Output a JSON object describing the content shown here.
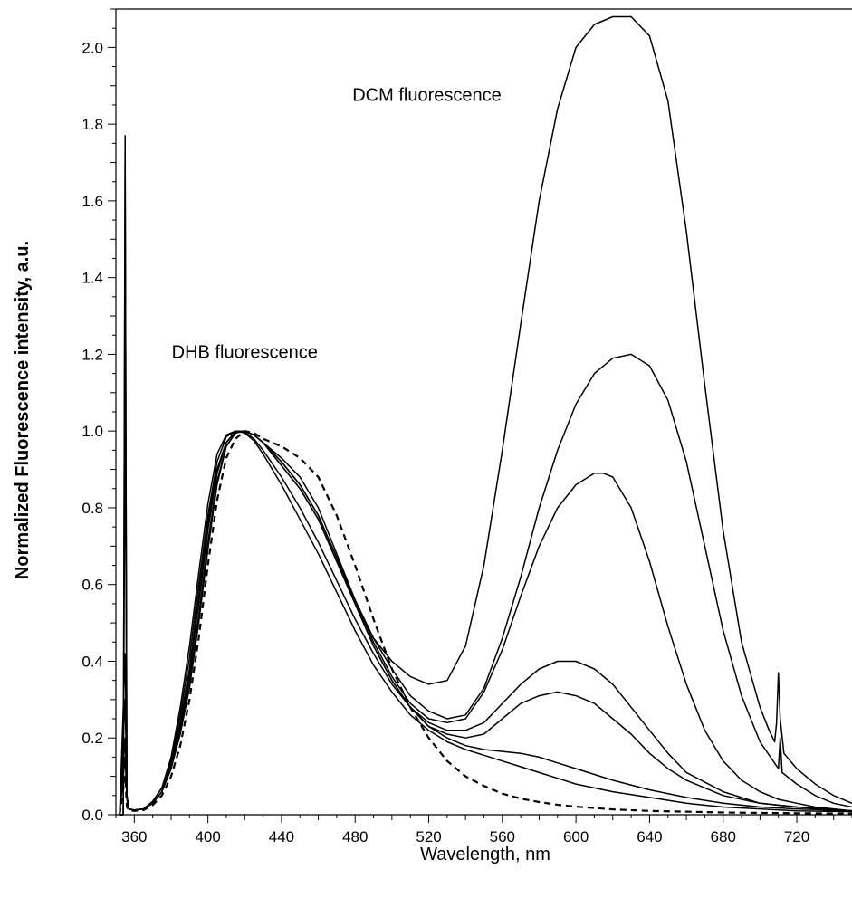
{
  "chart_data": {
    "type": "line",
    "xlabel": "Wavelength, nm",
    "ylabel": "Normalized Fluorescence intensity, a.u.",
    "xlim": [
      350,
      750
    ],
    "ylim": [
      0,
      2.1
    ],
    "x_ticks": [
      360,
      400,
      440,
      480,
      520,
      560,
      600,
      640,
      680,
      720
    ],
    "x_tick_labels": [
      "360",
      "400",
      "440",
      "480",
      "520",
      "560",
      "600",
      "640",
      "680",
      "720"
    ],
    "y_ticks": [
      0,
      0.2,
      0.4,
      0.6,
      0.8,
      1.0,
      1.2,
      1.4,
      1.6,
      1.8,
      2.0
    ],
    "y_tick_labels": [
      "0.0",
      "0.2",
      "0.4",
      "0.6",
      "0.8",
      "1.0",
      "1.2",
      "1.4",
      "1.6",
      "1.8",
      "2.0"
    ],
    "grid": false,
    "legend": "none",
    "annotations": [
      {
        "text": "DCM fluorescence",
        "x": 519,
        "y": 1.86
      },
      {
        "text": "DHB fluorescence",
        "x": 420,
        "y": 1.19
      }
    ],
    "series": [
      {
        "style": "solid",
        "color": "#000000",
        "x": [
          352,
          354,
          355,
          356,
          357,
          360,
          365,
          370,
          375,
          380,
          385,
          390,
          395,
          400,
          405,
          410,
          415,
          420,
          425,
          430,
          440,
          450,
          460,
          470,
          480,
          490,
          500,
          510,
          520,
          530,
          540,
          550,
          560,
          570,
          580,
          590,
          600,
          610,
          620,
          630,
          640,
          650,
          660,
          670,
          680,
          690,
          700,
          705,
          708,
          709,
          710,
          711,
          713,
          720,
          730,
          740,
          750
        ],
        "y": [
          0.0,
          0.0,
          1.77,
          0.05,
          0.015,
          0.012,
          0.015,
          0.03,
          0.06,
          0.12,
          0.21,
          0.33,
          0.5,
          0.69,
          0.86,
          0.96,
          0.995,
          1.0,
          0.99,
          0.97,
          0.91,
          0.85,
          0.77,
          0.66,
          0.55,
          0.46,
          0.4,
          0.36,
          0.34,
          0.35,
          0.44,
          0.65,
          0.95,
          1.28,
          1.6,
          1.84,
          2.0,
          2.06,
          2.08,
          2.08,
          2.03,
          1.86,
          1.52,
          1.12,
          0.74,
          0.45,
          0.28,
          0.22,
          0.19,
          0.24,
          0.37,
          0.25,
          0.16,
          0.12,
          0.08,
          0.05,
          0.03
        ]
      },
      {
        "style": "solid",
        "color": "#000000",
        "x": [
          352,
          354,
          355,
          356,
          357,
          360,
          365,
          370,
          375,
          380,
          385,
          390,
          395,
          400,
          405,
          410,
          415,
          420,
          425,
          430,
          440,
          450,
          460,
          470,
          480,
          490,
          500,
          510,
          520,
          530,
          540,
          550,
          560,
          570,
          580,
          590,
          600,
          610,
          620,
          630,
          640,
          650,
          660,
          670,
          680,
          690,
          700,
          710,
          711,
          712,
          720,
          730,
          740,
          750
        ],
        "y": [
          0.0,
          0.0,
          1.7,
          0.05,
          0.015,
          0.012,
          0.015,
          0.03,
          0.06,
          0.12,
          0.22,
          0.35,
          0.52,
          0.71,
          0.87,
          0.96,
          0.995,
          1.0,
          0.99,
          0.97,
          0.92,
          0.86,
          0.78,
          0.67,
          0.56,
          0.46,
          0.38,
          0.31,
          0.27,
          0.25,
          0.26,
          0.33,
          0.46,
          0.62,
          0.8,
          0.95,
          1.07,
          1.15,
          1.19,
          1.2,
          1.17,
          1.08,
          0.92,
          0.7,
          0.48,
          0.31,
          0.19,
          0.12,
          0.2,
          0.11,
          0.08,
          0.05,
          0.03,
          0.02
        ]
      },
      {
        "style": "solid",
        "color": "#000000",
        "x": [
          352,
          354,
          355,
          356,
          357,
          360,
          365,
          370,
          375,
          380,
          385,
          390,
          395,
          400,
          405,
          410,
          415,
          420,
          425,
          430,
          440,
          450,
          460,
          470,
          480,
          490,
          500,
          510,
          520,
          530,
          540,
          550,
          560,
          570,
          580,
          590,
          600,
          610,
          615,
          620,
          630,
          640,
          650,
          660,
          670,
          680,
          690,
          700,
          710,
          720,
          730,
          740,
          750
        ],
        "y": [
          0.0,
          0.0,
          1.12,
          0.05,
          0.015,
          0.012,
          0.015,
          0.03,
          0.06,
          0.13,
          0.23,
          0.37,
          0.55,
          0.74,
          0.89,
          0.97,
          0.999,
          1.0,
          0.99,
          0.97,
          0.93,
          0.88,
          0.8,
          0.68,
          0.56,
          0.45,
          0.36,
          0.29,
          0.25,
          0.24,
          0.25,
          0.32,
          0.43,
          0.57,
          0.7,
          0.8,
          0.86,
          0.89,
          0.89,
          0.88,
          0.8,
          0.66,
          0.49,
          0.34,
          0.22,
          0.14,
          0.09,
          0.06,
          0.04,
          0.03,
          0.02,
          0.015,
          0.01
        ]
      },
      {
        "style": "solid",
        "color": "#000000",
        "x": [
          352,
          355,
          356,
          357,
          360,
          365,
          370,
          375,
          380,
          385,
          390,
          395,
          400,
          405,
          410,
          415,
          420,
          425,
          430,
          440,
          450,
          460,
          470,
          480,
          490,
          500,
          510,
          520,
          530,
          540,
          550,
          560,
          570,
          580,
          590,
          600,
          610,
          620,
          630,
          640,
          650,
          660,
          680,
          700,
          720,
          750
        ],
        "y": [
          0.0,
          0.42,
          0.05,
          0.015,
          0.012,
          0.015,
          0.03,
          0.06,
          0.13,
          0.24,
          0.38,
          0.57,
          0.76,
          0.9,
          0.97,
          0.999,
          1.0,
          0.99,
          0.97,
          0.92,
          0.86,
          0.78,
          0.67,
          0.55,
          0.44,
          0.35,
          0.28,
          0.24,
          0.22,
          0.22,
          0.24,
          0.29,
          0.34,
          0.38,
          0.4,
          0.4,
          0.38,
          0.34,
          0.28,
          0.22,
          0.16,
          0.11,
          0.06,
          0.03,
          0.02,
          0.01
        ]
      },
      {
        "style": "solid",
        "color": "#000000",
        "x": [
          352,
          355,
          356,
          357,
          360,
          365,
          370,
          375,
          380,
          385,
          390,
          395,
          400,
          405,
          410,
          415,
          420,
          425,
          430,
          440,
          450,
          460,
          470,
          480,
          490,
          500,
          510,
          520,
          530,
          540,
          550,
          560,
          570,
          580,
          590,
          600,
          610,
          620,
          630,
          640,
          650,
          660,
          680,
          700,
          720,
          750
        ],
        "y": [
          0.0,
          0.3,
          0.05,
          0.015,
          0.012,
          0.015,
          0.03,
          0.06,
          0.13,
          0.24,
          0.38,
          0.57,
          0.76,
          0.9,
          0.97,
          0.999,
          1.0,
          0.99,
          0.97,
          0.91,
          0.85,
          0.77,
          0.66,
          0.55,
          0.44,
          0.35,
          0.28,
          0.23,
          0.21,
          0.2,
          0.21,
          0.25,
          0.29,
          0.31,
          0.32,
          0.31,
          0.29,
          0.25,
          0.21,
          0.16,
          0.12,
          0.09,
          0.05,
          0.03,
          0.02,
          0.01
        ]
      },
      {
        "style": "solid",
        "color": "#000000",
        "x": [
          352,
          355,
          356,
          357,
          360,
          365,
          370,
          375,
          380,
          385,
          390,
          395,
          400,
          405,
          410,
          415,
          420,
          425,
          430,
          440,
          450,
          460,
          470,
          480,
          490,
          500,
          510,
          520,
          530,
          540,
          550,
          560,
          570,
          580,
          590,
          600,
          620,
          640,
          660,
          680,
          700,
          720,
          750
        ],
        "y": [
          0.0,
          0.2,
          0.04,
          0.015,
          0.012,
          0.015,
          0.035,
          0.07,
          0.14,
          0.26,
          0.41,
          0.6,
          0.78,
          0.92,
          0.985,
          1.0,
          0.998,
          0.98,
          0.95,
          0.88,
          0.8,
          0.71,
          0.61,
          0.51,
          0.42,
          0.34,
          0.28,
          0.23,
          0.2,
          0.18,
          0.17,
          0.165,
          0.16,
          0.15,
          0.135,
          0.12,
          0.09,
          0.065,
          0.045,
          0.03,
          0.02,
          0.015,
          0.01
        ]
      },
      {
        "style": "solid",
        "color": "#000000",
        "x": [
          352,
          355,
          356,
          357,
          360,
          365,
          370,
          375,
          380,
          385,
          390,
          395,
          400,
          405,
          410,
          415,
          420,
          425,
          430,
          440,
          450,
          460,
          470,
          480,
          490,
          500,
          510,
          520,
          530,
          540,
          550,
          560,
          570,
          580,
          590,
          600,
          620,
          640,
          660,
          680,
          700,
          720,
          750
        ],
        "y": [
          0.0,
          0.15,
          0.04,
          0.015,
          0.012,
          0.015,
          0.035,
          0.07,
          0.15,
          0.28,
          0.44,
          0.63,
          0.81,
          0.94,
          0.99,
          1.0,
          0.995,
          0.975,
          0.94,
          0.86,
          0.77,
          0.68,
          0.58,
          0.48,
          0.39,
          0.32,
          0.26,
          0.22,
          0.19,
          0.17,
          0.155,
          0.14,
          0.125,
          0.11,
          0.095,
          0.08,
          0.06,
          0.045,
          0.03,
          0.02,
          0.015,
          0.01,
          0.008
        ]
      },
      {
        "style": "dashed",
        "color": "#000000",
        "x": [
          352,
          355,
          356,
          357,
          360,
          365,
          370,
          375,
          380,
          385,
          390,
          395,
          400,
          405,
          410,
          415,
          420,
          425,
          430,
          440,
          450,
          460,
          470,
          480,
          490,
          500,
          510,
          520,
          530,
          540,
          550,
          560,
          570,
          580,
          590,
          600,
          620,
          640,
          660,
          680,
          700,
          720,
          750
        ],
        "y": [
          0.0,
          0.1,
          0.02,
          0.012,
          0.01,
          0.012,
          0.025,
          0.05,
          0.1,
          0.18,
          0.3,
          0.46,
          0.65,
          0.82,
          0.93,
          0.98,
          1.0,
          0.995,
          0.98,
          0.96,
          0.93,
          0.88,
          0.78,
          0.65,
          0.51,
          0.38,
          0.28,
          0.2,
          0.14,
          0.1,
          0.075,
          0.055,
          0.042,
          0.033,
          0.026,
          0.021,
          0.014,
          0.01,
          0.008,
          0.006,
          0.005,
          0.004,
          0.003
        ]
      }
    ]
  }
}
